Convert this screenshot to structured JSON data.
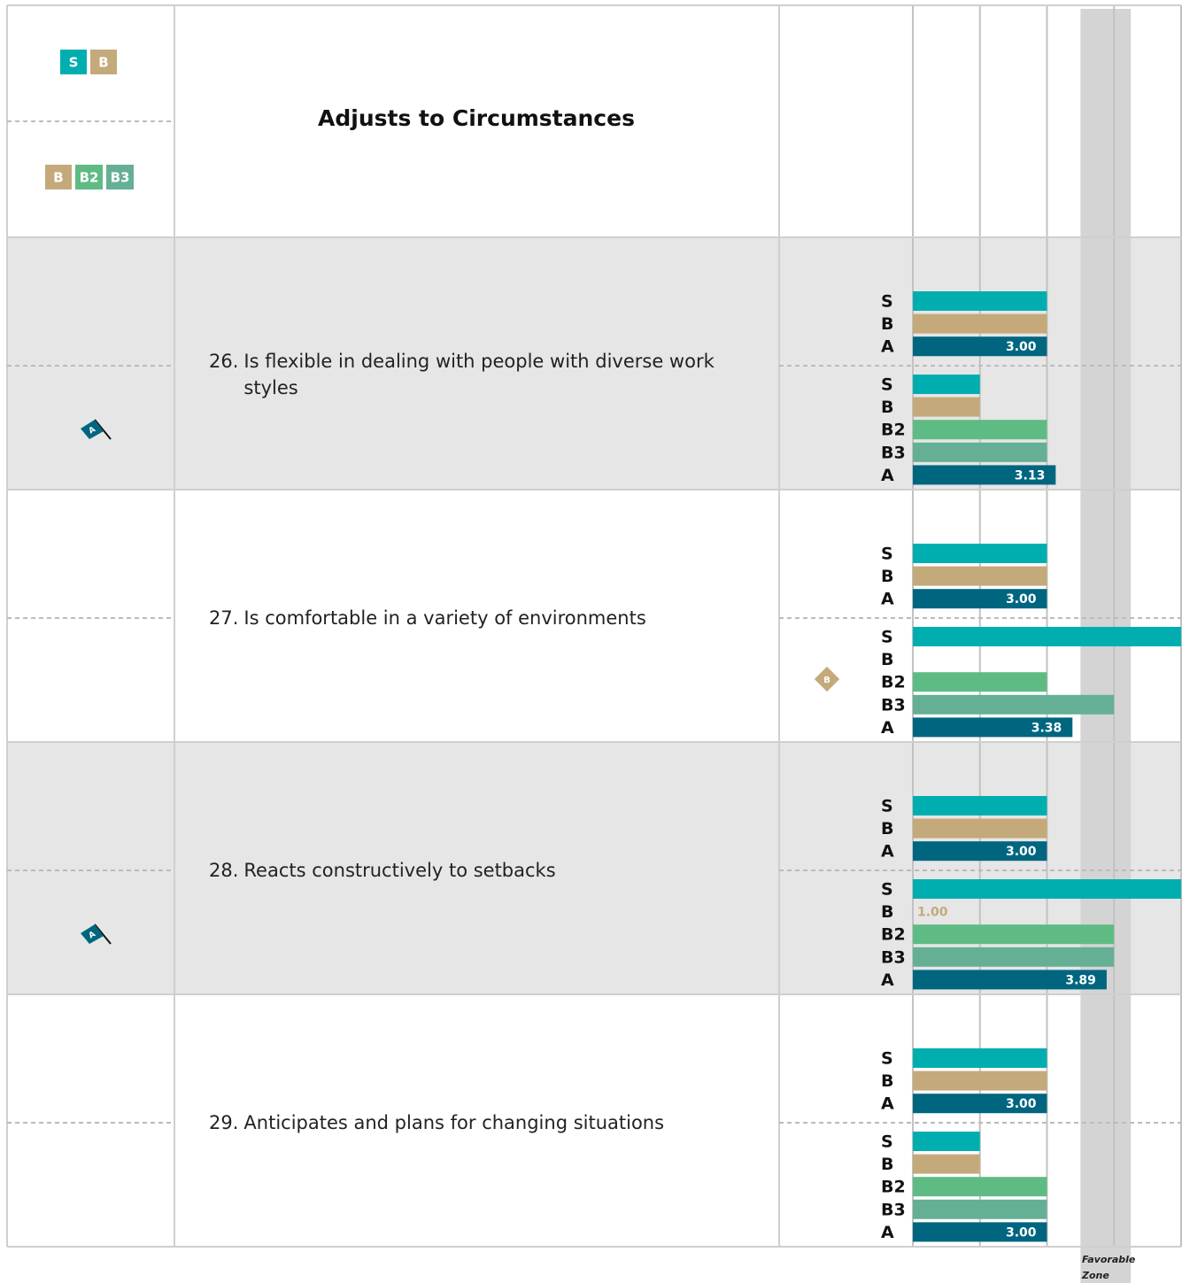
{
  "header": {
    "title": "Adjusts to Circumstances",
    "legend_top": [
      "S",
      "B"
    ],
    "legend_bottom": [
      "B",
      "B2",
      "B3"
    ]
  },
  "colors": {
    "S": "#00aeb0",
    "B": "#c4a97a",
    "B2": "#5fbb84",
    "B3": "#65b095",
    "A": "#006680"
  },
  "scale": {
    "xlim": [
      1,
      5
    ],
    "xticks": [
      1,
      2,
      3,
      4,
      5
    ],
    "favorable_zone": [
      3.5,
      4.25
    ],
    "favorable_label": "Favorable Zone"
  },
  "items": [
    {
      "number": "26.",
      "text": "Is flexible in dealing with people with diverse work styles",
      "flag": "A",
      "groups": [
        {
          "bars": [
            {
              "name": "S",
              "value": 3
            },
            {
              "name": "B",
              "value": 3
            },
            {
              "name": "A",
              "value": 3,
              "value_label": "3.00"
            }
          ]
        },
        {
          "bars": [
            {
              "name": "S",
              "value": 2
            },
            {
              "name": "B",
              "value": 2
            },
            {
              "name": "B2",
              "value": 3
            },
            {
              "name": "B3",
              "value": 3
            },
            {
              "name": "A",
              "value": 3.13,
              "value_label": "3.13"
            }
          ]
        }
      ]
    },
    {
      "number": "27.",
      "text": "Is comfortable in a variety of environments",
      "marker": "B",
      "groups": [
        {
          "bars": [
            {
              "name": "S",
              "value": 3
            },
            {
              "name": "B",
              "value": 3
            },
            {
              "name": "A",
              "value": 3,
              "value_label": "3.00"
            }
          ]
        },
        {
          "bars": [
            {
              "name": "S",
              "value": 5
            },
            {
              "name": "B",
              "value": 1
            },
            {
              "name": "B2",
              "value": 3
            },
            {
              "name": "B3",
              "value": 4
            },
            {
              "name": "A",
              "value": 3.38,
              "value_label": "3.38"
            }
          ]
        }
      ]
    },
    {
      "number": "28.",
      "text": "Reacts constructively to setbacks",
      "flag": "A",
      "groups": [
        {
          "bars": [
            {
              "name": "S",
              "value": 3
            },
            {
              "name": "B",
              "value": 3
            },
            {
              "name": "A",
              "value": 3,
              "value_label": "3.00"
            }
          ]
        },
        {
          "bars": [
            {
              "name": "S",
              "value": 5
            },
            {
              "name": "B",
              "value": 1,
              "value_label": "1.00"
            },
            {
              "name": "B2",
              "value": 4
            },
            {
              "name": "B3",
              "value": 4
            },
            {
              "name": "A",
              "value": 3.89,
              "value_label": "3.89"
            }
          ]
        }
      ]
    },
    {
      "number": "29.",
      "text": "Anticipates and plans for changing situations",
      "groups": [
        {
          "bars": [
            {
              "name": "S",
              "value": 3
            },
            {
              "name": "B",
              "value": 3
            },
            {
              "name": "A",
              "value": 3,
              "value_label": "3.00"
            }
          ]
        },
        {
          "bars": [
            {
              "name": "S",
              "value": 2
            },
            {
              "name": "B",
              "value": 2
            },
            {
              "name": "B2",
              "value": 3
            },
            {
              "name": "B3",
              "value": 3
            },
            {
              "name": "A",
              "value": 3,
              "value_label": "3.00"
            }
          ]
        }
      ]
    }
  ]
}
